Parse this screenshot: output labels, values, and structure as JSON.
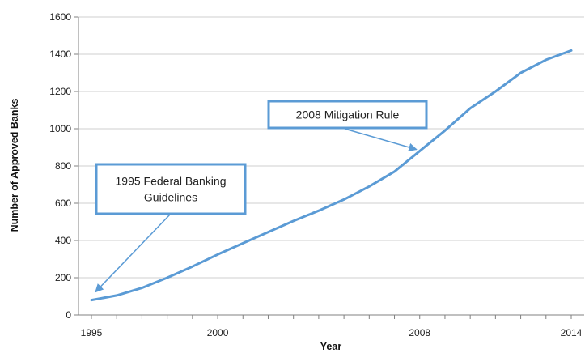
{
  "chart_data": {
    "type": "line",
    "title": "",
    "xlabel": "Year",
    "ylabel": "Number of Approved Banks",
    "xlim": [
      1995,
      2014
    ],
    "ylim": [
      0,
      1600
    ],
    "x_ticks": [
      "1995",
      "2000",
      "2008",
      "2014"
    ],
    "y_ticks": [
      "0",
      "200",
      "400",
      "600",
      "800",
      "1000",
      "1200",
      "1400",
      "1600"
    ],
    "grid": true,
    "legend": "none",
    "series": [
      {
        "color": "#5b9bd5",
        "points": [
          [
            1995,
            80
          ],
          [
            1996,
            105
          ],
          [
            1997,
            145
          ],
          [
            1998,
            200
          ],
          [
            1999,
            260
          ],
          [
            2000,
            325
          ],
          [
            2001,
            385
          ],
          [
            2002,
            445
          ],
          [
            2003,
            505
          ],
          [
            2004,
            560
          ],
          [
            2005,
            620
          ],
          [
            2006,
            690
          ],
          [
            2007,
            770
          ],
          [
            2008,
            880
          ],
          [
            2009,
            990
          ],
          [
            2010,
            1110
          ],
          [
            2011,
            1200
          ],
          [
            2012,
            1300
          ],
          [
            2013,
            1370
          ],
          [
            2014,
            1420
          ]
        ]
      }
    ],
    "annotations": [
      {
        "lines": [
          "2008 Mitigation Rule"
        ],
        "points_to": [
          2008,
          880
        ]
      },
      {
        "lines": [
          "1995 Federal Banking",
          "Guidelines"
        ],
        "points_to": [
          1995,
          80
        ]
      }
    ]
  }
}
